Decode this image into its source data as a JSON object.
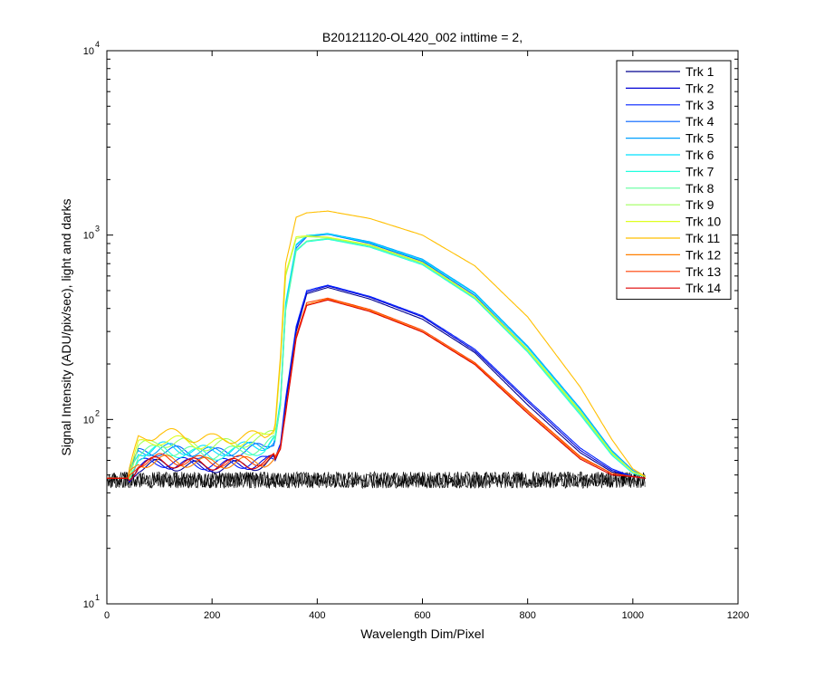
{
  "chart_data": {
    "type": "line",
    "title": "B20121120-OL420_002 inttime = 2,",
    "xlabel": "Wavelength Dim/Pixel",
    "ylabel": "Signal Intensity (ADU/pix/sec), light and darks",
    "xlim": [
      0,
      1200
    ],
    "ylim": [
      10,
      10000
    ],
    "yscale": "log",
    "grid": false,
    "legend_position": "top-right",
    "x_ticks": [
      "0",
      "200",
      "400",
      "600",
      "800",
      "1000",
      "1200"
    ],
    "y_ticks": [
      {
        "base": "10",
        "exp": "1"
      },
      {
        "base": "10",
        "exp": "2"
      },
      {
        "base": "10",
        "exp": "3"
      },
      {
        "base": "10",
        "exp": "4"
      }
    ],
    "dark_level": {
      "x": [
        0,
        1024
      ],
      "values": [
        47,
        47
      ],
      "color": "#000000"
    },
    "series": [
      {
        "name": "Trk 1",
        "color": "#00008f",
        "x": [
          0,
          40,
          60,
          100,
          200,
          300,
          320,
          330,
          340,
          360,
          380,
          420,
          500,
          600,
          700,
          800,
          900,
          960,
          1000,
          1024
        ],
        "values": [
          48,
          48,
          55,
          57,
          55,
          57,
          60,
          70,
          120,
          300,
          480,
          520,
          450,
          350,
          230,
          120,
          66,
          52,
          49,
          48
        ]
      },
      {
        "name": "Trk 2",
        "color": "#0000d5",
        "x": [
          0,
          40,
          60,
          100,
          200,
          300,
          320,
          330,
          340,
          360,
          380,
          420,
          500,
          600,
          700,
          800,
          900,
          960,
          1000,
          1024
        ],
        "values": [
          48,
          48,
          56,
          58,
          56,
          58,
          61,
          72,
          125,
          310,
          490,
          530,
          460,
          360,
          235,
          125,
          68,
          53,
          49,
          48
        ]
      },
      {
        "name": "Trk 3",
        "color": "#0020ff",
        "x": [
          0,
          40,
          60,
          100,
          200,
          300,
          320,
          330,
          340,
          360,
          380,
          420,
          500,
          600,
          700,
          800,
          900,
          960,
          1000,
          1024
        ],
        "values": [
          48,
          48,
          57,
          59,
          57,
          59,
          62,
          74,
          130,
          320,
          500,
          535,
          465,
          365,
          240,
          128,
          70,
          54,
          49,
          48
        ]
      },
      {
        "name": "Trk 4",
        "color": "#0060ff",
        "x": [
          0,
          40,
          60,
          100,
          200,
          300,
          320,
          330,
          340,
          360,
          380,
          420,
          500,
          600,
          700,
          800,
          900,
          960,
          1000,
          1024
        ],
        "values": [
          48,
          48,
          65,
          68,
          65,
          70,
          78,
          120,
          400,
          850,
          980,
          1010,
          900,
          720,
          470,
          240,
          110,
          66,
          52,
          49
        ]
      },
      {
        "name": "Trk 5",
        "color": "#00a0ff",
        "x": [
          0,
          40,
          60,
          100,
          200,
          300,
          320,
          330,
          340,
          360,
          380,
          420,
          500,
          600,
          700,
          800,
          900,
          960,
          1000,
          1024
        ],
        "values": [
          48,
          48,
          66,
          70,
          66,
          72,
          80,
          125,
          420,
          880,
          990,
          1020,
          920,
          740,
          485,
          250,
          115,
          68,
          53,
          49
        ]
      },
      {
        "name": "Trk 6",
        "color": "#00e0ff",
        "x": [
          0,
          40,
          60,
          100,
          200,
          300,
          320,
          330,
          340,
          360,
          380,
          420,
          500,
          600,
          700,
          800,
          900,
          960,
          1000,
          1024
        ],
        "values": [
          48,
          48,
          67,
          71,
          67,
          73,
          81,
          128,
          430,
          890,
          995,
          1015,
          910,
          730,
          480,
          246,
          113,
          67,
          52,
          49
        ]
      },
      {
        "name": "Trk 7",
        "color": "#20ffdf",
        "x": [
          0,
          40,
          60,
          100,
          200,
          300,
          320,
          330,
          340,
          360,
          380,
          420,
          500,
          600,
          700,
          800,
          900,
          960,
          1000,
          1024
        ],
        "values": [
          48,
          48,
          64,
          68,
          64,
          69,
          77,
          118,
          390,
          820,
          920,
          950,
          860,
          690,
          450,
          232,
          106,
          64,
          51,
          49
        ]
      },
      {
        "name": "Trk 8",
        "color": "#60ff9f",
        "x": [
          0,
          40,
          60,
          100,
          200,
          300,
          320,
          330,
          340,
          360,
          380,
          420,
          500,
          600,
          700,
          800,
          900,
          960,
          1000,
          1024
        ],
        "values": [
          48,
          48,
          65,
          69,
          65,
          70,
          78,
          120,
          395,
          830,
          930,
          960,
          870,
          700,
          455,
          235,
          108,
          65,
          52,
          49
        ]
      },
      {
        "name": "Trk 9",
        "color": "#a0ff5f",
        "x": [
          0,
          40,
          60,
          100,
          200,
          300,
          320,
          330,
          340,
          360,
          380,
          420,
          500,
          600,
          700,
          800,
          900,
          960,
          1000,
          1024
        ],
        "values": [
          48,
          48,
          70,
          76,
          72,
          78,
          88,
          200,
          600,
          960,
          980,
          970,
          880,
          705,
          460,
          238,
          110,
          66,
          52,
          49
        ]
      },
      {
        "name": "Trk 10",
        "color": "#dfff20",
        "x": [
          0,
          40,
          60,
          100,
          200,
          300,
          320,
          330,
          340,
          360,
          380,
          420,
          500,
          600,
          700,
          800,
          900,
          960,
          1000,
          1024
        ],
        "values": [
          48,
          48,
          72,
          78,
          73,
          80,
          90,
          210,
          620,
          980,
          990,
          975,
          885,
          710,
          462,
          240,
          111,
          66,
          52,
          49
        ]
      },
      {
        "name": "Trk 11",
        "color": "#ffbf00",
        "x": [
          0,
          40,
          60,
          100,
          200,
          300,
          320,
          330,
          340,
          360,
          380,
          420,
          500,
          600,
          700,
          800,
          900,
          960,
          1000,
          1024
        ],
        "values": [
          48,
          48,
          78,
          85,
          78,
          82,
          95,
          220,
          700,
          1250,
          1320,
          1350,
          1230,
          1000,
          680,
          360,
          150,
          78,
          54,
          49
        ]
      },
      {
        "name": "Trk 12",
        "color": "#ff7f00",
        "x": [
          0,
          40,
          60,
          100,
          200,
          300,
          320,
          330,
          340,
          360,
          380,
          420,
          500,
          600,
          700,
          800,
          900,
          960,
          1000,
          1024
        ],
        "values": [
          48,
          48,
          58,
          60,
          58,
          59,
          62,
          70,
          110,
          280,
          420,
          450,
          390,
          300,
          200,
          110,
          62,
          51,
          49,
          48
        ]
      },
      {
        "name": "Trk 13",
        "color": "#ff3f00",
        "x": [
          0,
          40,
          60,
          100,
          200,
          300,
          320,
          330,
          340,
          360,
          380,
          420,
          500,
          600,
          700,
          800,
          900,
          960,
          1000,
          1024
        ],
        "values": [
          48,
          48,
          59,
          61,
          59,
          60,
          63,
          71,
          112,
          285,
          430,
          455,
          395,
          305,
          203,
          112,
          63,
          51,
          49,
          48
        ]
      },
      {
        "name": "Trk 14",
        "color": "#df0000",
        "x": [
          0,
          40,
          60,
          100,
          200,
          300,
          320,
          330,
          340,
          360,
          380,
          420,
          500,
          600,
          700,
          800,
          900,
          960,
          1000,
          1024
        ],
        "values": [
          48,
          48,
          57,
          59,
          57,
          58,
          61,
          69,
          108,
          275,
          415,
          445,
          385,
          298,
          198,
          108,
          61,
          50,
          49,
          48
        ]
      }
    ]
  }
}
